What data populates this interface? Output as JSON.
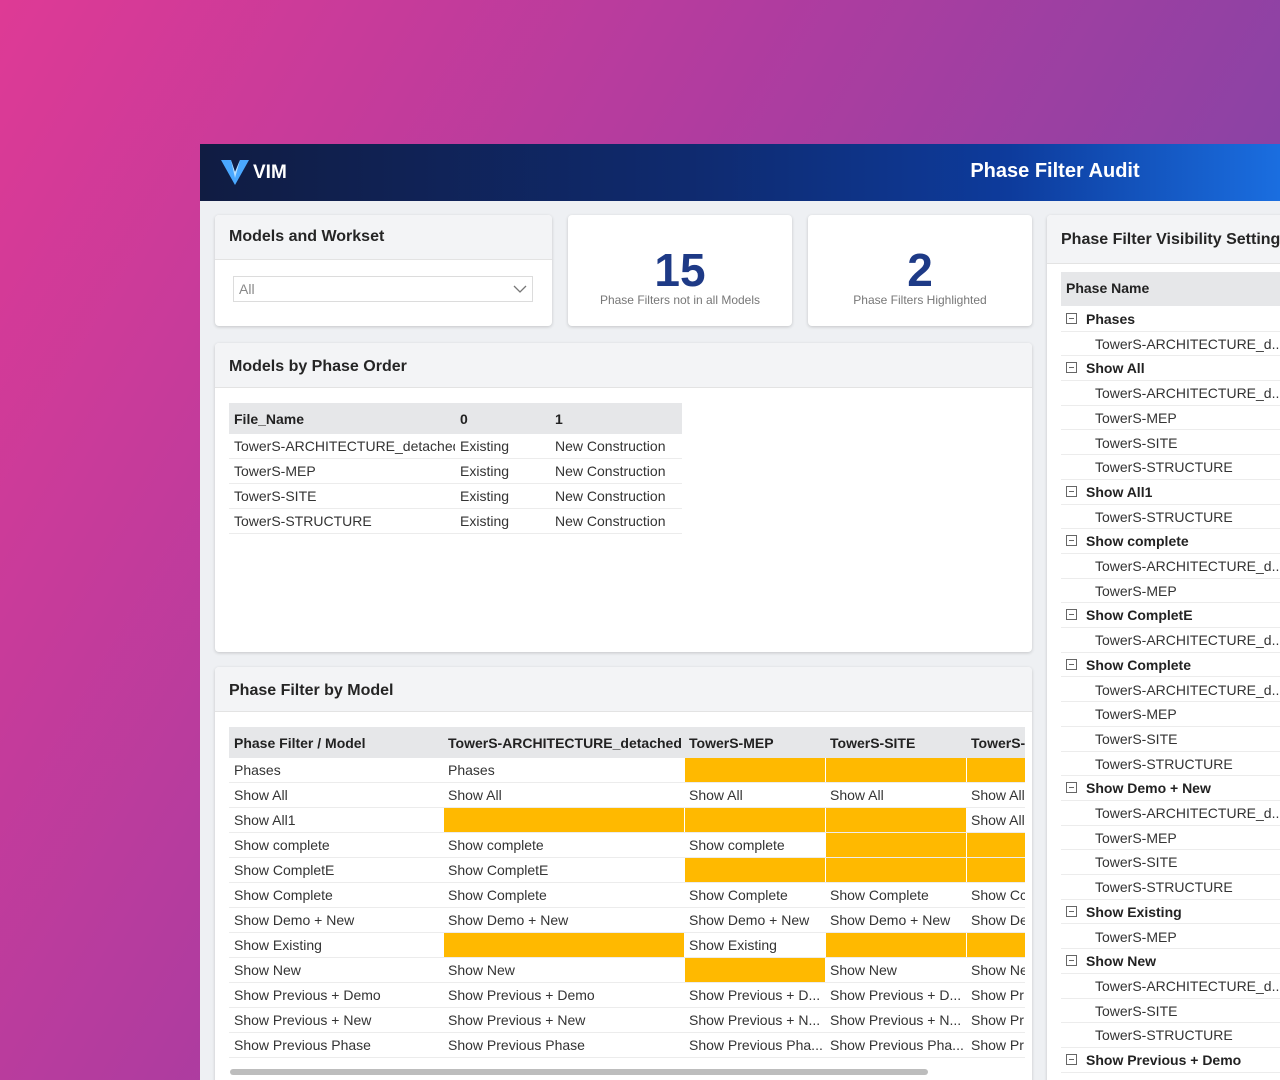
{
  "header": {
    "logo": "VIM",
    "title": "Phase Filter Audit"
  },
  "models_panel": {
    "title": "Models and Workset",
    "dropdown": "All"
  },
  "kpis": [
    {
      "value": 15,
      "label": "Phase Filters not in all Models"
    },
    {
      "value": 2,
      "label": "Phase Filters Highlighted"
    }
  ],
  "phase_order": {
    "title": "Models by Phase Order",
    "columns": [
      "File_Name",
      "0",
      "1"
    ],
    "rows": [
      [
        "TowerS-ARCHITECTURE_detached",
        "Existing",
        "New Construction"
      ],
      [
        "TowerS-MEP",
        "Existing",
        "New Construction"
      ],
      [
        "TowerS-SITE",
        "Existing",
        "New Construction"
      ],
      [
        "TowerS-STRUCTURE",
        "Existing",
        "New Construction"
      ]
    ]
  },
  "phase_filter_by_model": {
    "title": "Phase Filter by Model",
    "highlight_color": "#ffb900",
    "columns": [
      "Phase Filter / Model",
      "TowerS-ARCHITECTURE_detached",
      "TowerS-MEP",
      "TowerS-SITE",
      "TowerS-"
    ],
    "rows": [
      [
        "Phases",
        "Phases",
        null,
        null,
        null
      ],
      [
        "Show All",
        "Show All",
        "Show All",
        "Show All",
        "Show All"
      ],
      [
        "Show All1",
        null,
        null,
        null,
        "Show All"
      ],
      [
        "Show complete",
        "Show complete",
        "Show complete",
        null,
        null
      ],
      [
        "Show CompletE",
        "Show CompletE",
        null,
        null,
        null
      ],
      [
        "Show Complete",
        "Show Complete",
        "Show Complete",
        "Show Complete",
        "Show Cc"
      ],
      [
        "Show Demo + New",
        "Show Demo + New",
        "Show Demo + New",
        "Show Demo + New",
        "Show De"
      ],
      [
        "Show Existing",
        null,
        "Show Existing",
        null,
        null
      ],
      [
        "Show New",
        "Show New",
        null,
        "Show New",
        "Show Ne"
      ],
      [
        "Show Previous + Demo",
        "Show Previous + Demo",
        "Show Previous + D...",
        "Show Previous + D...",
        "Show Pr"
      ],
      [
        "Show Previous + New",
        "Show Previous + New",
        "Show Previous + N...",
        "Show Previous + N...",
        "Show Pr"
      ],
      [
        "Show Previous Phase",
        "Show Previous Phase",
        "Show Previous Pha...",
        "Show Previous Pha...",
        "Show Pr"
      ]
    ]
  },
  "visibility_panel": {
    "title": "Phase Filter Visibility Settings",
    "column": "Phase Name",
    "groups": [
      {
        "name": "Phases",
        "items": [
          "TowerS-ARCHITECTURE_d..."
        ]
      },
      {
        "name": "Show All",
        "items": [
          "TowerS-ARCHITECTURE_d...",
          "TowerS-MEP",
          "TowerS-SITE",
          "TowerS-STRUCTURE"
        ]
      },
      {
        "name": "Show All1",
        "items": [
          "TowerS-STRUCTURE"
        ]
      },
      {
        "name": "Show complete",
        "items": [
          "TowerS-ARCHITECTURE_d...",
          "TowerS-MEP"
        ]
      },
      {
        "name": "Show CompletE",
        "items": [
          "TowerS-ARCHITECTURE_d..."
        ]
      },
      {
        "name": "Show Complete",
        "items": [
          "TowerS-ARCHITECTURE_d...",
          "TowerS-MEP",
          "TowerS-SITE",
          "TowerS-STRUCTURE"
        ]
      },
      {
        "name": "Show Demo + New",
        "items": [
          "TowerS-ARCHITECTURE_d...",
          "TowerS-MEP",
          "TowerS-SITE",
          "TowerS-STRUCTURE"
        ]
      },
      {
        "name": "Show Existing",
        "items": [
          "TowerS-MEP"
        ]
      },
      {
        "name": "Show New",
        "items": [
          "TowerS-ARCHITECTURE_d...",
          "TowerS-SITE",
          "TowerS-STRUCTURE"
        ]
      },
      {
        "name": "Show Previous + Demo",
        "items": []
      }
    ]
  }
}
